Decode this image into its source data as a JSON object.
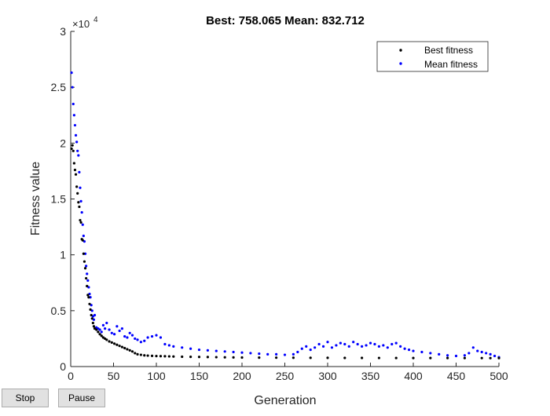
{
  "chart_data": {
    "type": "scatter",
    "title": "Best: 758.065 Mean: 832.712",
    "xlabel": "Generation",
    "ylabel": "Fitness value",
    "xlim": [
      0,
      500
    ],
    "ylim": [
      0,
      30000
    ],
    "x_ticks": [
      0,
      50,
      100,
      150,
      200,
      250,
      300,
      350,
      400,
      450,
      500
    ],
    "y_ticks": [
      0,
      5000,
      10000,
      15000,
      20000,
      25000,
      30000
    ],
    "y_tick_labels": [
      "0",
      "0.5",
      "1",
      "1.5",
      "2",
      "2.5",
      "3"
    ],
    "y_exponent_label": "×10",
    "y_exponent_power": "4",
    "grid": false,
    "legend_position": "top-right",
    "series": [
      {
        "name": "Best fitness",
        "color": "#000000",
        "x": [
          1,
          2,
          3,
          4,
          5,
          6,
          7,
          8,
          9,
          10,
          11,
          12,
          13,
          14,
          15,
          16,
          17,
          18,
          19,
          20,
          21,
          22,
          23,
          24,
          25,
          26,
          27,
          28,
          30,
          32,
          34,
          36,
          38,
          40,
          42,
          45,
          48,
          51,
          54,
          57,
          60,
          63,
          66,
          69,
          72,
          75,
          78,
          82,
          86,
          90,
          95,
          100,
          105,
          110,
          115,
          120,
          130,
          140,
          150,
          160,
          170,
          180,
          190,
          200,
          220,
          240,
          260,
          280,
          300,
          320,
          340,
          360,
          380,
          400,
          420,
          440,
          460,
          480,
          490,
          500
        ],
        "y": [
          19500,
          19800,
          19300,
          18200,
          17600,
          17200,
          16100,
          15500,
          14700,
          14300,
          13100,
          12900,
          11400,
          11300,
          10100,
          9400,
          8800,
          7900,
          7200,
          6400,
          6200,
          5600,
          5100,
          4600,
          4300,
          3900,
          3600,
          3400,
          3300,
          3100,
          2900,
          2750,
          2600,
          2500,
          2400,
          2250,
          2150,
          2050,
          1950,
          1850,
          1750,
          1650,
          1550,
          1450,
          1350,
          1200,
          1100,
          1050,
          1000,
          980,
          960,
          940,
          930,
          920,
          910,
          900,
          880,
          870,
          860,
          850,
          840,
          830,
          820,
          810,
          800,
          795,
          790,
          785,
          780,
          775,
          772,
          770,
          768,
          765,
          763,
          762,
          761,
          760,
          759,
          758
        ]
      },
      {
        "name": "Mean fitness",
        "color": "#0000ff",
        "x": [
          1,
          2,
          3,
          4,
          5,
          6,
          7,
          8,
          9,
          10,
          11,
          12,
          13,
          14,
          15,
          16,
          17,
          18,
          19,
          20,
          21,
          22,
          23,
          24,
          25,
          26,
          27,
          28,
          30,
          32,
          34,
          36,
          38,
          40,
          42,
          45,
          48,
          51,
          54,
          57,
          60,
          63,
          66,
          69,
          72,
          75,
          78,
          82,
          86,
          90,
          95,
          100,
          105,
          110,
          115,
          120,
          130,
          140,
          150,
          160,
          170,
          180,
          190,
          200,
          210,
          220,
          230,
          240,
          250,
          260,
          265,
          270,
          275,
          280,
          285,
          290,
          295,
          300,
          305,
          310,
          315,
          320,
          325,
          330,
          335,
          340,
          345,
          350,
          355,
          360,
          365,
          370,
          375,
          380,
          385,
          390,
          395,
          400,
          410,
          420,
          430,
          440,
          450,
          460,
          465,
          470,
          475,
          480,
          485,
          490,
          495,
          500
        ],
        "y": [
          26300,
          25000,
          23500,
          22500,
          21600,
          20700,
          20100,
          19300,
          18900,
          17400,
          16000,
          14800,
          13800,
          12700,
          11700,
          11200,
          10100,
          9000,
          8300,
          7700,
          7100,
          6500,
          6200,
          5500,
          5000,
          4500,
          4200,
          4600,
          3500,
          3400,
          3300,
          3100,
          3700,
          3400,
          3900,
          3300,
          3000,
          2900,
          3600,
          3200,
          3400,
          2700,
          2600,
          3000,
          2800,
          2500,
          2400,
          2200,
          2300,
          2600,
          2700,
          2800,
          2600,
          2000,
          1900,
          1800,
          1700,
          1600,
          1500,
          1450,
          1400,
          1350,
          1300,
          1250,
          1200,
          1150,
          1100,
          1100,
          1050,
          1100,
          1300,
          1600,
          1800,
          1500,
          1700,
          2000,
          1800,
          2200,
          1700,
          1900,
          2100,
          2000,
          1800,
          2200,
          2000,
          1800,
          1900,
          2100,
          2000,
          1800,
          1900,
          1700,
          2000,
          2100,
          1800,
          1600,
          1500,
          1400,
          1300,
          1200,
          1100,
          1000,
          950,
          1000,
          1200,
          1700,
          1400,
          1300,
          1200,
          1100,
          950,
          833
        ]
      }
    ]
  },
  "controls": {
    "stop_label": "Stop",
    "pause_label": "Pause"
  }
}
